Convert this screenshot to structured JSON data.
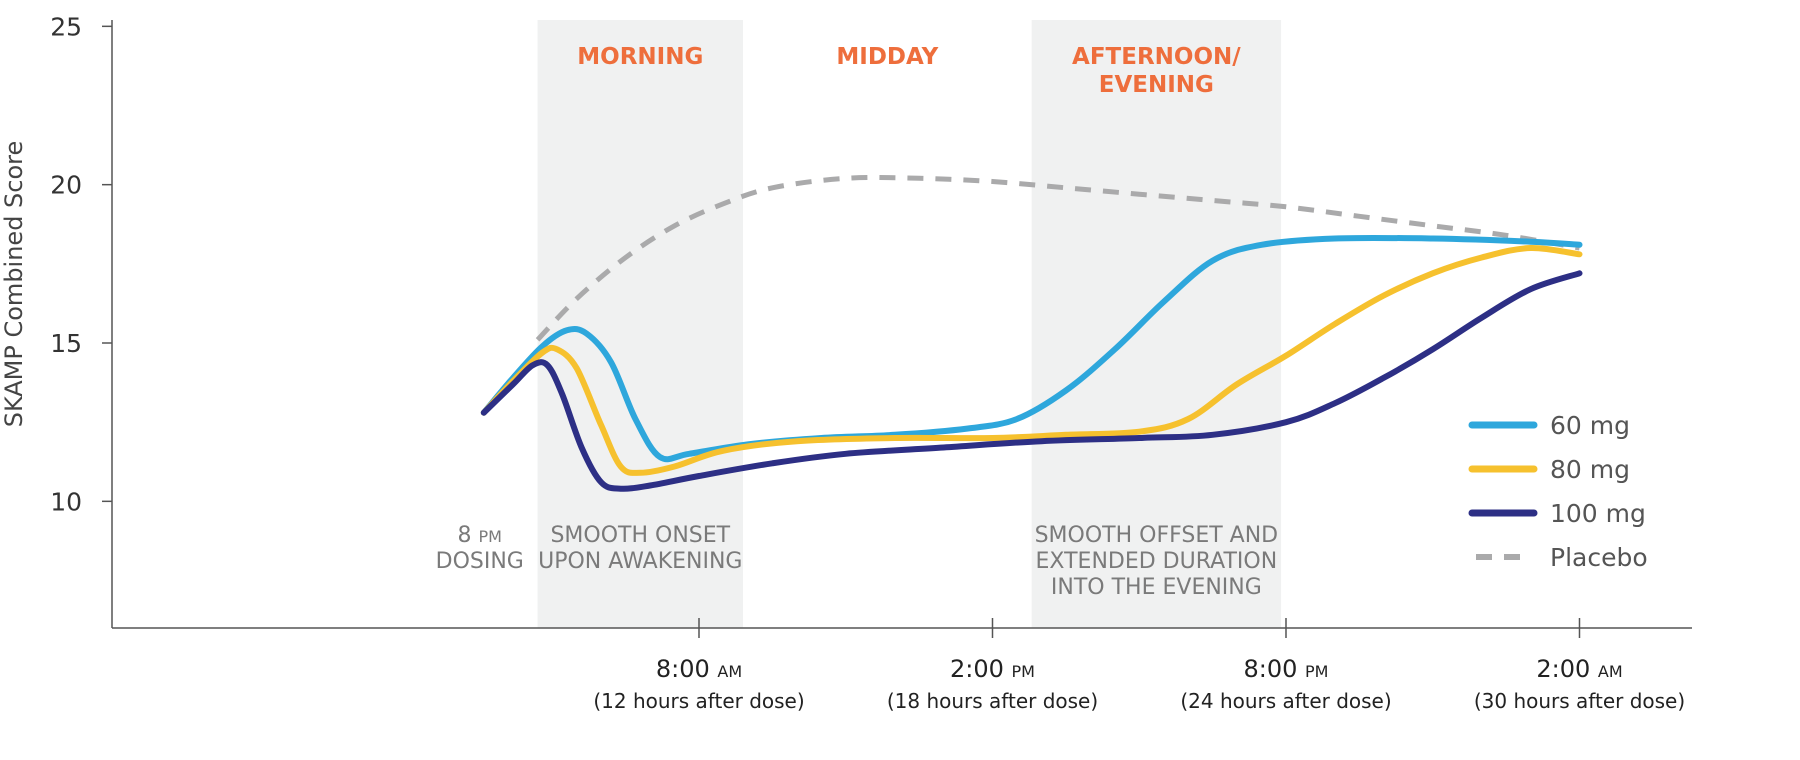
{
  "chart_data": {
    "type": "line",
    "ylabel": "SKAMP Combined Score",
    "ylim": [
      6,
      25.2
    ],
    "yticks": [
      10,
      15,
      20,
      25
    ],
    "x_unit": "hours after dose",
    "xlim": [
      0,
      32.3
    ],
    "xticks": [
      {
        "x": 12,
        "time": "8:00",
        "period": "AM",
        "sub": "(12 hours after dose)"
      },
      {
        "x": 18,
        "time": "2:00",
        "period": "PM",
        "sub": "(18 hours after dose)"
      },
      {
        "x": 24,
        "time": "8:00",
        "period": "PM",
        "sub": "(24 hours after dose)"
      },
      {
        "x": 30,
        "time": "2:00",
        "period": "AM",
        "sub": "(30 hours after dose)"
      }
    ],
    "regions": [
      {
        "start": 8.7,
        "end": 12.9,
        "shaded": true,
        "title_lines": [
          "MORNING"
        ],
        "note_lines": [
          "SMOOTH ONSET",
          "UPON AWAKENING"
        ]
      },
      {
        "start": 12.9,
        "end": 18.8,
        "shaded": false,
        "title_lines": [
          "MIDDAY"
        ],
        "note_lines": []
      },
      {
        "start": 18.8,
        "end": 23.9,
        "shaded": true,
        "title_lines": [
          "AFTERNOON/",
          "EVENING"
        ],
        "note_lines": [
          "SMOOTH OFFSET AND",
          "EXTENDED DURATION",
          "INTO THE EVENING"
        ]
      }
    ],
    "dosing_note": {
      "time": "8",
      "period": "PM",
      "label": "DOSING"
    },
    "series": [
      {
        "name": "60 mg",
        "color": "#2ea7dc",
        "style": "solid",
        "points": [
          [
            7.6,
            12.8
          ],
          [
            8.2,
            13.9
          ],
          [
            8.8,
            14.9
          ],
          [
            9.3,
            15.4
          ],
          [
            9.7,
            15.3
          ],
          [
            10.2,
            14.4
          ],
          [
            10.7,
            12.6
          ],
          [
            11.2,
            11.4
          ],
          [
            11.8,
            11.5
          ],
          [
            13,
            11.8
          ],
          [
            14.5,
            12.0
          ],
          [
            16,
            12.1
          ],
          [
            17.5,
            12.3
          ],
          [
            18.5,
            12.6
          ],
          [
            19.5,
            13.5
          ],
          [
            20.5,
            14.8
          ],
          [
            21.5,
            16.3
          ],
          [
            22.5,
            17.6
          ],
          [
            23.5,
            18.1
          ],
          [
            25,
            18.3
          ],
          [
            27,
            18.3
          ],
          [
            29,
            18.2
          ],
          [
            30,
            18.1
          ]
        ]
      },
      {
        "name": "80 mg",
        "color": "#f6c12e",
        "style": "solid",
        "points": [
          [
            7.6,
            12.8
          ],
          [
            8.2,
            13.8
          ],
          [
            8.8,
            14.7
          ],
          [
            9.1,
            14.8
          ],
          [
            9.5,
            14.2
          ],
          [
            10.0,
            12.4
          ],
          [
            10.4,
            11.1
          ],
          [
            10.8,
            10.9
          ],
          [
            11.5,
            11.1
          ],
          [
            12.5,
            11.6
          ],
          [
            14,
            11.9
          ],
          [
            16,
            12.0
          ],
          [
            18,
            12.0
          ],
          [
            19.5,
            12.1
          ],
          [
            21,
            12.2
          ],
          [
            22,
            12.6
          ],
          [
            23,
            13.7
          ],
          [
            24,
            14.6
          ],
          [
            25,
            15.6
          ],
          [
            26,
            16.5
          ],
          [
            27,
            17.2
          ],
          [
            28,
            17.7
          ],
          [
            29,
            18.0
          ],
          [
            30,
            17.8
          ]
        ]
      },
      {
        "name": "100 mg",
        "color": "#2d2f85",
        "style": "solid",
        "points": [
          [
            7.6,
            12.8
          ],
          [
            8.2,
            13.7
          ],
          [
            8.6,
            14.3
          ],
          [
            8.9,
            14.3
          ],
          [
            9.2,
            13.4
          ],
          [
            9.6,
            11.7
          ],
          [
            10.0,
            10.6
          ],
          [
            10.4,
            10.4
          ],
          [
            11,
            10.5
          ],
          [
            12,
            10.8
          ],
          [
            13.5,
            11.2
          ],
          [
            15,
            11.5
          ],
          [
            17,
            11.7
          ],
          [
            19,
            11.9
          ],
          [
            21,
            12.0
          ],
          [
            22.5,
            12.1
          ],
          [
            24,
            12.5
          ],
          [
            25,
            13.1
          ],
          [
            26,
            13.9
          ],
          [
            27,
            14.8
          ],
          [
            28,
            15.8
          ],
          [
            29,
            16.7
          ],
          [
            30,
            17.2
          ]
        ]
      },
      {
        "name": "Placebo",
        "color": "#aaaaab",
        "style": "dashed",
        "points": [
          [
            8.7,
            15.1
          ],
          [
            9.5,
            16.4
          ],
          [
            10.5,
            17.7
          ],
          [
            11.5,
            18.7
          ],
          [
            12.5,
            19.4
          ],
          [
            13.5,
            19.9
          ],
          [
            15,
            20.2
          ],
          [
            16.5,
            20.2
          ],
          [
            18,
            20.1
          ],
          [
            19.5,
            19.9
          ],
          [
            21,
            19.7
          ],
          [
            22.5,
            19.5
          ],
          [
            24,
            19.3
          ],
          [
            25.5,
            19.0
          ],
          [
            27,
            18.7
          ],
          [
            28.5,
            18.4
          ],
          [
            30,
            18.0
          ]
        ]
      }
    ],
    "legend": {
      "position": "right"
    },
    "grid": false
  }
}
